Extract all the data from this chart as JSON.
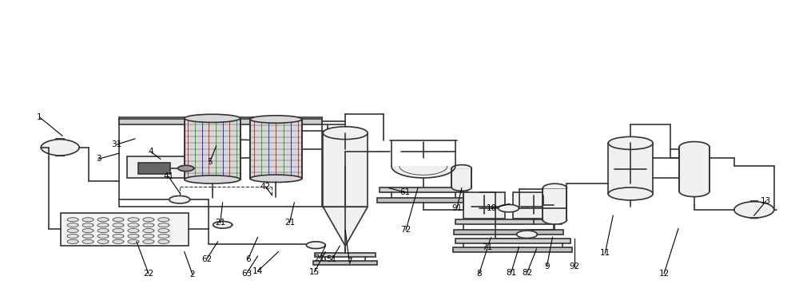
{
  "bg_color": "#ffffff",
  "lc": "#333333",
  "lw": 1.2,
  "fig_width": 10.0,
  "fig_height": 3.66,
  "label_fs": 7.5,
  "labels": {
    "1": [
      0.048,
      0.6,
      0.077,
      0.535
    ],
    "2": [
      0.24,
      0.058,
      0.23,
      0.135
    ],
    "3": [
      0.122,
      0.455,
      0.148,
      0.475
    ],
    "4": [
      0.188,
      0.48,
      0.2,
      0.455
    ],
    "5": [
      0.262,
      0.445,
      0.27,
      0.5
    ],
    "6": [
      0.31,
      0.11,
      0.322,
      0.185
    ],
    "7": [
      0.437,
      0.1,
      0.432,
      0.21
    ],
    "8": [
      0.6,
      0.06,
      0.61,
      0.145
    ],
    "9": [
      0.685,
      0.085,
      0.692,
      0.185
    ],
    "10": [
      0.616,
      0.285,
      0.638,
      0.3
    ],
    "11": [
      0.758,
      0.13,
      0.768,
      0.26
    ],
    "12": [
      0.832,
      0.06,
      0.85,
      0.215
    ],
    "13": [
      0.96,
      0.31,
      0.945,
      0.26
    ],
    "14": [
      0.322,
      0.068,
      0.348,
      0.135
    ],
    "15": [
      0.393,
      0.065,
      0.407,
      0.135
    ],
    "21a": [
      0.275,
      0.235,
      0.278,
      0.305
    ],
    "21b": [
      0.362,
      0.235,
      0.368,
      0.305
    ],
    "21c": [
      0.4,
      0.112,
      0.407,
      0.155
    ],
    "22": [
      0.185,
      0.06,
      0.17,
      0.17
    ],
    "31": [
      0.145,
      0.505,
      0.168,
      0.525
    ],
    "41": [
      0.21,
      0.395,
      0.225,
      0.335
    ],
    "42": [
      0.332,
      0.36,
      0.34,
      0.33
    ],
    "51": [
      0.415,
      0.108,
      0.425,
      0.155
    ],
    "61": [
      0.507,
      0.34,
      0.487,
      0.355
    ],
    "62": [
      0.258,
      0.11,
      0.272,
      0.17
    ],
    "63": [
      0.308,
      0.06,
      0.322,
      0.12
    ],
    "71": [
      0.61,
      0.15,
      0.615,
      0.185
    ],
    "72": [
      0.508,
      0.21,
      0.523,
      0.355
    ],
    "81": [
      0.64,
      0.062,
      0.65,
      0.152
    ],
    "82": [
      0.66,
      0.062,
      0.672,
      0.145
    ],
    "91": [
      0.572,
      0.285,
      0.578,
      0.355
    ],
    "92": [
      0.72,
      0.085,
      0.72,
      0.18
    ]
  }
}
